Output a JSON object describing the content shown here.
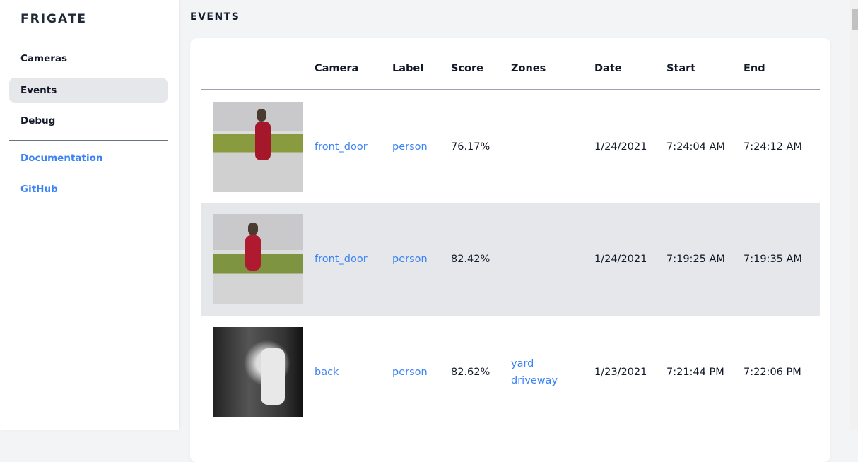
{
  "sidebar": {
    "brand": "FRIGATE",
    "items": [
      {
        "label": "Cameras"
      },
      {
        "label": "Events",
        "active": true
      },
      {
        "label": "Debug"
      }
    ],
    "links": [
      {
        "label": "Documentation"
      },
      {
        "label": "GitHub"
      }
    ]
  },
  "page": {
    "title": "EVENTS"
  },
  "table": {
    "columns": [
      "",
      "Camera",
      "Label",
      "Score",
      "Zones",
      "Date",
      "Start",
      "End"
    ],
    "rows": [
      {
        "camera": "front_door",
        "label": "person",
        "score": "76.17%",
        "zones": [
          "",
          ""
        ],
        "date": "1/24/2021",
        "start": "7:24:04 AM",
        "end": "7:24:12 AM"
      },
      {
        "camera": "front_door",
        "label": "person",
        "score": "82.42%",
        "zones": [
          "",
          ""
        ],
        "date": "1/24/2021",
        "start": "7:19:25 AM",
        "end": "7:19:35 AM"
      },
      {
        "camera": "back",
        "label": "person",
        "score": "82.62%",
        "zones": [
          "yard",
          "driveway"
        ],
        "date": "1/23/2021",
        "start": "7:21:44 PM",
        "end": "7:22:06 PM"
      }
    ]
  },
  "colors": {
    "accent": "#3b82f6",
    "active_bg": "#e5e7eb"
  }
}
